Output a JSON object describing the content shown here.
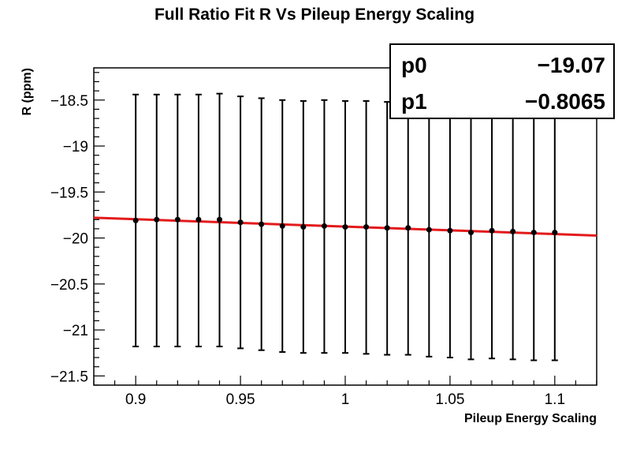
{
  "chart_data": {
    "type": "scatter",
    "title": "Full Ratio Fit R Vs Pileup Energy Scaling",
    "xlabel": "Pileup Energy Scaling",
    "ylabel": "R (ppm)",
    "xlim": [
      0.88,
      1.12
    ],
    "ylim": [
      -21.6,
      -18.15
    ],
    "x_ticks": [
      {
        "value": 0.9,
        "label": "0.9"
      },
      {
        "value": 0.95,
        "label": "0.95"
      },
      {
        "value": 1.0,
        "label": "1"
      },
      {
        "value": 1.05,
        "label": "1.05"
      },
      {
        "value": 1.1,
        "label": "1.1"
      }
    ],
    "y_ticks": [
      {
        "value": -18.5,
        "label": "−18.5"
      },
      {
        "value": -19.0,
        "label": "−19"
      },
      {
        "value": -19.5,
        "label": "−19.5"
      },
      {
        "value": -20.0,
        "label": "−20"
      },
      {
        "value": -20.5,
        "label": "−20.5"
      },
      {
        "value": -21.0,
        "label": "−21"
      },
      {
        "value": -21.5,
        "label": "−21.5"
      }
    ],
    "x": [
      0.9,
      0.91,
      0.92,
      0.93,
      0.94,
      0.95,
      0.96,
      0.97,
      0.98,
      0.99,
      1.0,
      1.01,
      1.02,
      1.03,
      1.04,
      1.05,
      1.06,
      1.07,
      1.08,
      1.09,
      1.1
    ],
    "y": [
      -19.81,
      -19.8,
      -19.8,
      -19.8,
      -19.8,
      -19.83,
      -19.85,
      -19.87,
      -19.88,
      -19.87,
      -19.88,
      -19.88,
      -19.89,
      -19.89,
      -19.91,
      -19.92,
      -19.94,
      -19.92,
      -19.93,
      -19.94,
      -19.94
    ],
    "yerr_low": [
      -21.18,
      -21.18,
      -21.18,
      -21.18,
      -21.18,
      -21.2,
      -21.22,
      -21.24,
      -21.25,
      -21.25,
      -21.25,
      -21.26,
      -21.27,
      -21.27,
      -21.29,
      -21.3,
      -21.32,
      -21.31,
      -21.32,
      -21.33,
      -21.33
    ],
    "yerr_high": [
      -18.44,
      -18.44,
      -18.44,
      -18.44,
      -18.43,
      -18.46,
      -18.48,
      -18.5,
      -18.51,
      -18.5,
      -18.51,
      -18.51,
      -18.52,
      -18.52,
      -18.53,
      -18.54,
      -18.56,
      -18.54,
      -18.55,
      -18.56,
      -18.56
    ],
    "fit": {
      "function": "linear",
      "p0": -19.07,
      "p1": -0.8065,
      "x_range": [
        0.88,
        1.12
      ],
      "color": "#e31a1c"
    },
    "stats_box": {
      "rows": [
        {
          "name": "p0",
          "value": "−19.07"
        },
        {
          "name": "p1",
          "value": "−0.8065"
        }
      ],
      "placement": "top-right"
    },
    "marker_color": "#000000",
    "grid": false
  }
}
